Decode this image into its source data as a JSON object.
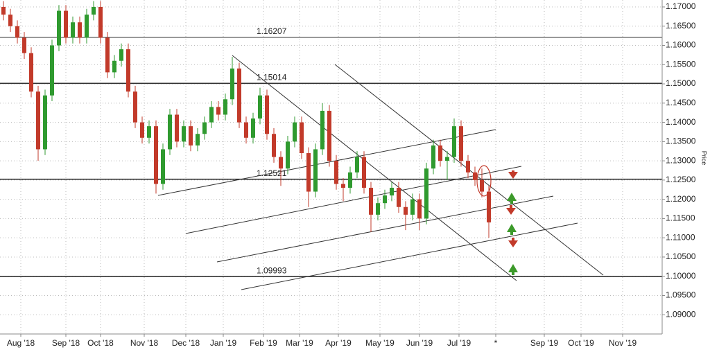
{
  "chart_data": {
    "type": "candlestick",
    "ylabel": "Price",
    "ylim": [
      1.085,
      1.1718
    ],
    "yticks": [
      {
        "value": 1.09,
        "label": "1.09000"
      },
      {
        "value": 1.095,
        "label": "1.09500"
      },
      {
        "value": 1.1,
        "label": "1.10000"
      },
      {
        "value": 1.105,
        "label": "1.10500"
      },
      {
        "value": 1.11,
        "label": "1.11000"
      },
      {
        "value": 1.115,
        "label": "1.11500"
      },
      {
        "value": 1.12,
        "label": "1.12000"
      },
      {
        "value": 1.125,
        "label": "1.12500"
      },
      {
        "value": 1.13,
        "label": "1.13000"
      },
      {
        "value": 1.135,
        "label": "1.13500"
      },
      {
        "value": 1.14,
        "label": "1.14000"
      },
      {
        "value": 1.145,
        "label": "1.14500"
      },
      {
        "value": 1.15,
        "label": "1.15000"
      },
      {
        "value": 1.155,
        "label": "1.15500"
      },
      {
        "value": 1.16,
        "label": "1.16000"
      },
      {
        "value": 1.165,
        "label": "1.16500"
      },
      {
        "value": 1.17,
        "label": "1.17000"
      }
    ],
    "x_labels": [
      "Aug '18",
      "Sep '18",
      "Oct '18",
      "Nov '18",
      "Dec '18",
      "Jan '19",
      "Feb '19",
      "Mar '19",
      "Apr '19",
      "May '19",
      "Jun '19",
      "Jul '19",
      "*",
      "Sep '19",
      "Oct '19",
      "Nov '19"
    ],
    "levels": [
      1.16207,
      1.15014,
      1.12521,
      1.09993
    ],
    "grid": true,
    "up_color": "#2f9a2f",
    "down_color": "#c23a2a",
    "level_color": "#333333",
    "ohlc": [
      [
        1.17,
        1.1715,
        1.1665,
        1.168
      ],
      [
        1.168,
        1.1695,
        1.1635,
        1.165
      ],
      [
        1.165,
        1.1665,
        1.1605,
        1.162
      ],
      [
        1.162,
        1.1635,
        1.1565,
        1.158
      ],
      [
        1.158,
        1.1595,
        1.1465,
        1.148
      ],
      [
        1.148,
        1.1495,
        1.13,
        1.133
      ],
      [
        1.133,
        1.1485,
        1.1315,
        1.147
      ],
      [
        1.147,
        1.1615,
        1.1455,
        1.16
      ],
      [
        1.16,
        1.1705,
        1.1585,
        1.169
      ],
      [
        1.169,
        1.1705,
        1.1605,
        1.162
      ],
      [
        1.162,
        1.1675,
        1.1605,
        1.166
      ],
      [
        1.166,
        1.1675,
        1.1605,
        1.162
      ],
      [
        1.162,
        1.1695,
        1.1605,
        1.168
      ],
      [
        1.168,
        1.1715,
        1.1665,
        1.17
      ],
      [
        1.17,
        1.1715,
        1.1605,
        1.162
      ],
      [
        1.162,
        1.1635,
        1.1515,
        1.153
      ],
      [
        1.153,
        1.1575,
        1.1515,
        1.156
      ],
      [
        1.156,
        1.1605,
        1.1545,
        1.159
      ],
      [
        1.159,
        1.1605,
        1.1465,
        1.148
      ],
      [
        1.148,
        1.1495,
        1.1385,
        1.14
      ],
      [
        1.14,
        1.1415,
        1.1345,
        1.136
      ],
      [
        1.136,
        1.1405,
        1.1345,
        1.139
      ],
      [
        1.139,
        1.1405,
        1.1215,
        1.124
      ],
      [
        1.124,
        1.1345,
        1.1225,
        1.133
      ],
      [
        1.133,
        1.1435,
        1.1315,
        1.142
      ],
      [
        1.142,
        1.1435,
        1.1335,
        1.135
      ],
      [
        1.135,
        1.1405,
        1.1335,
        1.139
      ],
      [
        1.139,
        1.1405,
        1.1325,
        1.134
      ],
      [
        1.134,
        1.1385,
        1.1325,
        1.137
      ],
      [
        1.137,
        1.1415,
        1.1355,
        1.14
      ],
      [
        1.14,
        1.1455,
        1.1385,
        1.144
      ],
      [
        1.144,
        1.1455,
        1.1405,
        1.142
      ],
      [
        1.142,
        1.1475,
        1.1405,
        1.146
      ],
      [
        1.146,
        1.157,
        1.1445,
        1.154
      ],
      [
        1.154,
        1.1555,
        1.1385,
        1.14
      ],
      [
        1.14,
        1.1415,
        1.1345,
        1.136
      ],
      [
        1.136,
        1.1425,
        1.1345,
        1.141
      ],
      [
        1.141,
        1.149,
        1.1395,
        1.147
      ],
      [
        1.147,
        1.1485,
        1.1355,
        1.137
      ],
      [
        1.137,
        1.1385,
        1.1295,
        1.131
      ],
      [
        1.131,
        1.1325,
        1.1235,
        1.128
      ],
      [
        1.128,
        1.1365,
        1.1265,
        1.135
      ],
      [
        1.135,
        1.1415,
        1.1335,
        1.14
      ],
      [
        1.14,
        1.1415,
        1.1305,
        1.132
      ],
      [
        1.132,
        1.1335,
        1.118,
        1.122
      ],
      [
        1.122,
        1.1345,
        1.1205,
        1.133
      ],
      [
        1.133,
        1.145,
        1.1315,
        1.143
      ],
      [
        1.143,
        1.1445,
        1.1285,
        1.13
      ],
      [
        1.13,
        1.1315,
        1.1225,
        1.124
      ],
      [
        1.124,
        1.1255,
        1.1195,
        1.123
      ],
      [
        1.123,
        1.1285,
        1.1215,
        1.127
      ],
      [
        1.127,
        1.1325,
        1.1255,
        1.131
      ],
      [
        1.131,
        1.1325,
        1.1215,
        1.123
      ],
      [
        1.123,
        1.1245,
        1.1115,
        1.116
      ],
      [
        1.116,
        1.1205,
        1.1145,
        1.119
      ],
      [
        1.119,
        1.1225,
        1.1175,
        1.121
      ],
      [
        1.121,
        1.1245,
        1.1195,
        1.123
      ],
      [
        1.123,
        1.1245,
        1.1165,
        1.118
      ],
      [
        1.118,
        1.1195,
        1.112,
        1.116
      ],
      [
        1.116,
        1.1215,
        1.1145,
        1.12
      ],
      [
        1.12,
        1.1215,
        1.112,
        1.115
      ],
      [
        1.115,
        1.1295,
        1.1135,
        1.128
      ],
      [
        1.128,
        1.1355,
        1.1265,
        1.134
      ],
      [
        1.134,
        1.1355,
        1.1285,
        1.13
      ],
      [
        1.13,
        1.1325,
        1.125,
        1.131
      ],
      [
        1.131,
        1.141,
        1.1295,
        1.139
      ],
      [
        1.139,
        1.1405,
        1.1285,
        1.13
      ],
      [
        1.13,
        1.1315,
        1.1255,
        1.127
      ],
      [
        1.127,
        1.1285,
        1.1235,
        1.125
      ],
      [
        1.125,
        1.128,
        1.1205,
        1.122
      ],
      [
        1.122,
        1.1235,
        1.11,
        1.114
      ]
    ]
  }
}
